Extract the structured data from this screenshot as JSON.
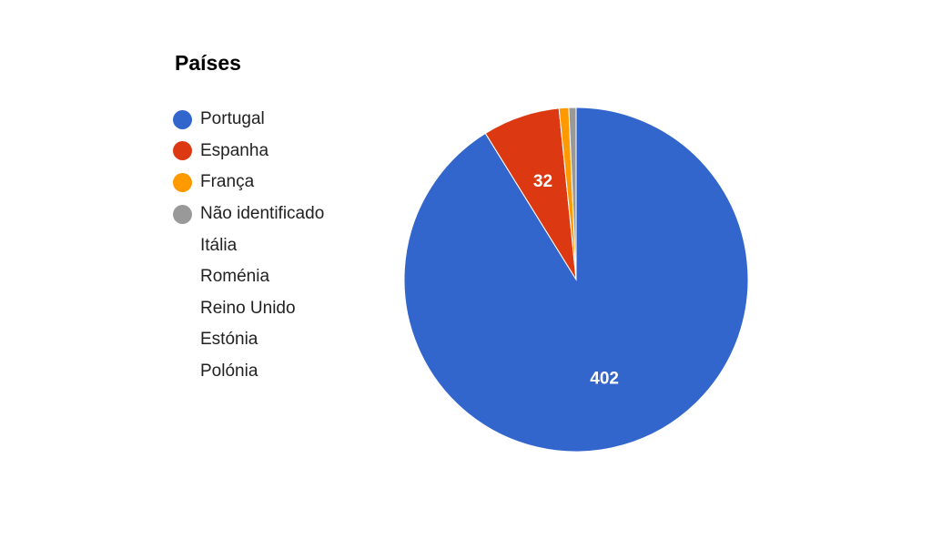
{
  "chart_data": {
    "type": "pie",
    "title": "Países",
    "slices": [
      {
        "label": "Portugal",
        "value": 402,
        "color": "#3366cc",
        "data_label": "402"
      },
      {
        "label": "Espanha",
        "value": 32,
        "color": "#dc3912",
        "data_label": "32"
      },
      {
        "label": "França",
        "value": 4,
        "color": "#ff9900",
        "data_label": ""
      },
      {
        "label": "Não identificado",
        "value": 3,
        "color": "#999999",
        "data_label": ""
      },
      {
        "label": "Itália",
        "value": 0,
        "color": "",
        "data_label": ""
      },
      {
        "label": "Roménia",
        "value": 0,
        "color": "",
        "data_label": ""
      },
      {
        "label": "Reino Unido",
        "value": 0,
        "color": "",
        "data_label": ""
      },
      {
        "label": "Estónia",
        "value": 0,
        "color": "",
        "data_label": ""
      },
      {
        "label": "Polónia",
        "value": 0,
        "color": "",
        "data_label": ""
      }
    ],
    "legend_position": "left"
  }
}
